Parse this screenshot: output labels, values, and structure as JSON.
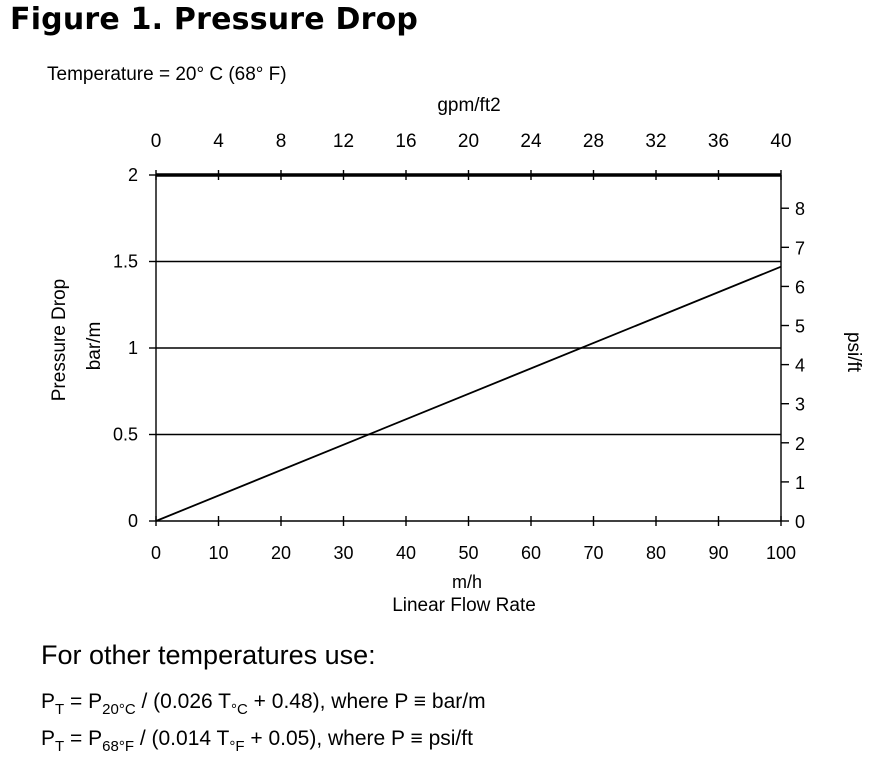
{
  "figure_title": "Figure 1. Pressure Drop",
  "condition_label": "Temperature = 20° C (68° F)",
  "chart_data": {
    "type": "line",
    "x": [
      0,
      100
    ],
    "series": [
      {
        "values": [
          0.0,
          1.47
        ]
      }
    ],
    "xlabel": "m/h",
    "xlabel2": "Linear Flow Rate",
    "xlim": [
      0,
      100
    ],
    "xticks": [
      "0",
      "10",
      "20",
      "30",
      "40",
      "50",
      "60",
      "70",
      "80",
      "90",
      "100"
    ],
    "ylabel": "Pressure Drop",
    "ylabel_unit": "bar/m",
    "ylim": [
      0,
      2
    ],
    "yticks": [
      "0",
      "0.5",
      "1",
      "1.5",
      "2"
    ],
    "top_axis_label": "gpm/ft2",
    "top_axis_lim": [
      0,
      40
    ],
    "top_axis_ticks": [
      "0",
      "4",
      "8",
      "12",
      "16",
      "20",
      "24",
      "28",
      "32",
      "36",
      "40"
    ],
    "right_axis_label": "psi/ft",
    "right_axis_lim": [
      0,
      8.85
    ],
    "right_axis_ticks": [
      "0",
      "1",
      "2",
      "3",
      "4",
      "5",
      "6",
      "7",
      "8"
    ],
    "grid": "horizontal"
  },
  "other_temps": {
    "heading": "For other temperatures use:",
    "eq1": {
      "lhs": "P",
      "lhs_sub": "T",
      "eq": " = P",
      "ref_sub": "20°C",
      "mid": " / (0.026 T",
      "t_sub": "°C",
      "tail": " + 0.48), where P ≡ bar/m"
    },
    "eq2": {
      "lhs": "P",
      "lhs_sub": "T",
      "eq": " = P",
      "ref_sub": "68°F",
      "mid": " / (0.014 T",
      "t_sub": "°F",
      "tail": " + 0.05), where P ≡ psi/ft"
    }
  }
}
